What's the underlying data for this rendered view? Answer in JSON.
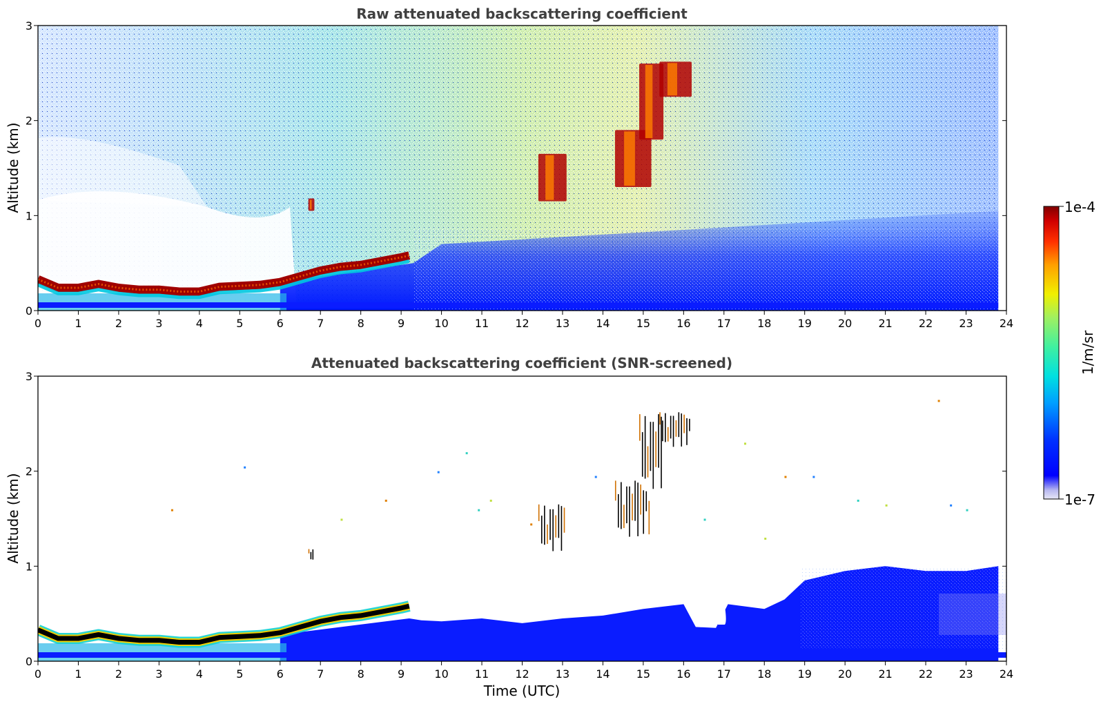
{
  "chart_data": [
    {
      "type": "heatmap",
      "title": "Raw attenuated backscattering coefficient",
      "xlabel": "",
      "ylabel": "Altitude (km)",
      "xlim": [
        0,
        24
      ],
      "ylim": [
        0,
        3
      ],
      "x_ticks": [
        "0",
        "1",
        "2",
        "3",
        "4",
        "5",
        "6",
        "7",
        "8",
        "9",
        "10",
        "11",
        "12",
        "13",
        "14",
        "15",
        "16",
        "17",
        "18",
        "19",
        "20",
        "21",
        "22",
        "23",
        "24"
      ],
      "y_ticks": [
        "0",
        "1",
        "2",
        "3"
      ],
      "data_end_time": 23.8,
      "boundary_layer_top_km": {
        "time": [
          0,
          0.5,
          1,
          1.5,
          2,
          2.5,
          3,
          3.5,
          4,
          4.5,
          5,
          5.5,
          6,
          6.5,
          7,
          7.5,
          8,
          8.5,
          9,
          9.2
        ],
        "altitude": [
          0.33,
          0.24,
          0.24,
          0.28,
          0.24,
          0.22,
          0.22,
          0.2,
          0.2,
          0.25,
          0.26,
          0.27,
          0.3,
          0.36,
          0.42,
          0.46,
          0.48,
          0.52,
          0.56,
          0.58
        ]
      },
      "cloud_features": [
        {
          "time": [
            6.7,
            6.85
          ],
          "altitude": [
            1.05,
            1.18
          ]
        },
        {
          "time": [
            12.4,
            13.1
          ],
          "altitude": [
            1.15,
            1.65
          ]
        },
        {
          "time": [
            14.3,
            15.2
          ],
          "altitude": [
            1.3,
            1.9
          ]
        },
        {
          "time": [
            14.9,
            15.5
          ],
          "altitude": [
            1.8,
            2.6
          ]
        },
        {
          "time": [
            15.4,
            16.2
          ],
          "altitude": [
            2.25,
            2.62
          ]
        }
      ]
    },
    {
      "type": "heatmap",
      "title": "Attenuated backscattering coefficient (SNR-screened)",
      "xlabel": "Time (UTC)",
      "ylabel": "Altitude (km)",
      "xlim": [
        0,
        24
      ],
      "ylim": [
        0,
        3
      ],
      "x_ticks": [
        "0",
        "1",
        "2",
        "3",
        "4",
        "5",
        "6",
        "7",
        "8",
        "9",
        "10",
        "11",
        "12",
        "13",
        "14",
        "15",
        "16",
        "17",
        "18",
        "19",
        "20",
        "21",
        "22",
        "23",
        "24"
      ],
      "y_ticks": [
        "0",
        "1",
        "2",
        "3"
      ],
      "screened_signal_top_km": {
        "time": [
          9.5,
          10,
          11,
          12,
          13,
          14,
          15,
          16,
          16.3,
          16.8,
          17.1,
          18,
          18.5,
          19,
          20,
          21,
          22,
          23,
          23.8
        ],
        "altitude": [
          0.43,
          0.42,
          0.45,
          0.4,
          0.45,
          0.48,
          0.55,
          0.6,
          0.36,
          0.35,
          0.6,
          0.55,
          0.65,
          0.85,
          0.95,
          1.0,
          0.95,
          0.95,
          1.0
        ]
      }
    }
  ],
  "colorbar": {
    "min_label": "1e-7",
    "max_label": "1e-4",
    "unit_label": "1/m/sr",
    "colormap": "jet",
    "low_end_color": "#e6e6f5",
    "high_end_color": "#800000"
  }
}
